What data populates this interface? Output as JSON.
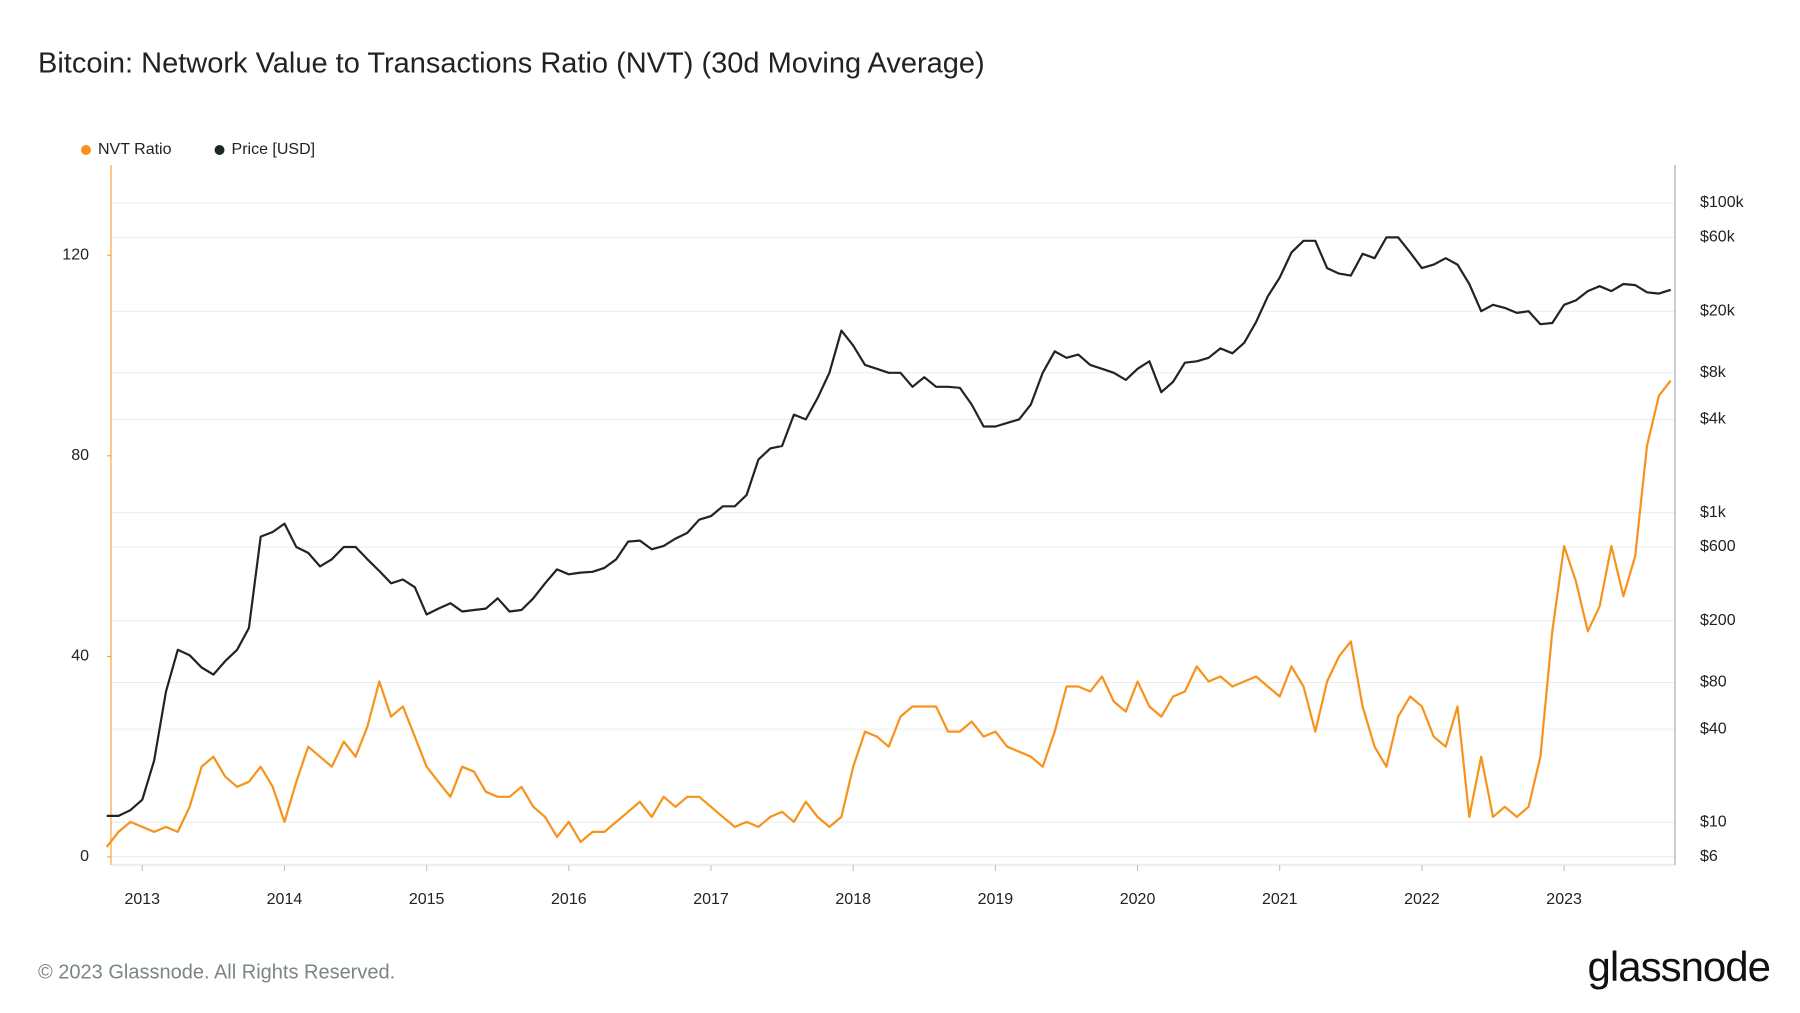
{
  "chart_data": {
    "type": "line",
    "title": "Bitcoin: Network Value to Transactions Ratio (NVT) (30d Moving Average)",
    "note": "© 2023 Glassnode. All Rights Reserved.",
    "logo": "glassnode",
    "x": [
      2012.75,
      2012.833,
      2012.917,
      2013,
      2013.083,
      2013.167,
      2013.25,
      2013.333,
      2013.417,
      2013.5,
      2013.583,
      2013.667,
      2013.75,
      2013.833,
      2013.917,
      2014,
      2014.083,
      2014.167,
      2014.25,
      2014.333,
      2014.417,
      2014.5,
      2014.583,
      2014.667,
      2014.75,
      2014.833,
      2014.917,
      2015,
      2015.083,
      2015.167,
      2015.25,
      2015.333,
      2015.417,
      2015.5,
      2015.583,
      2015.667,
      2015.75,
      2015.833,
      2015.917,
      2016,
      2016.083,
      2016.167,
      2016.25,
      2016.333,
      2016.417,
      2016.5,
      2016.583,
      2016.667,
      2016.75,
      2016.833,
      2016.917,
      2017,
      2017.083,
      2017.167,
      2017.25,
      2017.333,
      2017.417,
      2017.5,
      2017.583,
      2017.667,
      2017.75,
      2017.833,
      2017.917,
      2018,
      2018.083,
      2018.167,
      2018.25,
      2018.333,
      2018.417,
      2018.5,
      2018.583,
      2018.667,
      2018.75,
      2018.833,
      2018.917,
      2019,
      2019.083,
      2019.167,
      2019.25,
      2019.333,
      2019.417,
      2019.5,
      2019.583,
      2019.667,
      2019.75,
      2019.833,
      2019.917,
      2020,
      2020.083,
      2020.167,
      2020.25,
      2020.333,
      2020.417,
      2020.5,
      2020.583,
      2020.667,
      2020.75,
      2020.833,
      2020.917,
      2021,
      2021.083,
      2021.167,
      2021.25,
      2021.333,
      2021.417,
      2021.5,
      2021.583,
      2021.667,
      2021.75,
      2021.833,
      2021.917,
      2022,
      2022.083,
      2022.167,
      2022.25,
      2022.333,
      2022.417,
      2022.5,
      2022.583,
      2022.667,
      2022.75,
      2022.833,
      2022.917,
      2023,
      2023.083,
      2023.167,
      2023.25,
      2023.333,
      2023.417,
      2023.5,
      2023.583,
      2023.667,
      2023.75
    ],
    "series": [
      {
        "name": "NVT Ratio",
        "color": "#f7931a",
        "axis": "y",
        "values": [
          2,
          5,
          7,
          6,
          5,
          6,
          5,
          10,
          18,
          20,
          16,
          14,
          15,
          18,
          14,
          7,
          15,
          22,
          20,
          18,
          23,
          20,
          26,
          35,
          28,
          30,
          24,
          18,
          15,
          12,
          18,
          17,
          13,
          12,
          12,
          14,
          10,
          8,
          4,
          7,
          3,
          5,
          5,
          7,
          9,
          11,
          8,
          12,
          10,
          12,
          12,
          10,
          8,
          6,
          7,
          6,
          8,
          9,
          7,
          11,
          8,
          6,
          8,
          18,
          25,
          24,
          22,
          28,
          30,
          30,
          30,
          25,
          25,
          27,
          24,
          25,
          22,
          21,
          20,
          18,
          25,
          34,
          34,
          33,
          36,
          31,
          29,
          35,
          30,
          28,
          32,
          33,
          38,
          35,
          36,
          34,
          35,
          36,
          34,
          32,
          38,
          34,
          25,
          35,
          40,
          43,
          30,
          22,
          18,
          28,
          32,
          30,
          24,
          22,
          30,
          8,
          20,
          8,
          10,
          8,
          10,
          20,
          45,
          62,
          55,
          45,
          50,
          62,
          52,
          60,
          82,
          92,
          95
        ]
      },
      {
        "name": "Price [USD]",
        "color": "#1c2626",
        "axis": "y2",
        "values": [
          11,
          11,
          12,
          14,
          25,
          70,
          130,
          120,
          100,
          90,
          110,
          130,
          180,
          700,
          750,
          850,
          600,
          550,
          450,
          500,
          600,
          600,
          500,
          420,
          350,
          370,
          330,
          220,
          240,
          260,
          230,
          235,
          240,
          280,
          230,
          235,
          280,
          350,
          430,
          400,
          410,
          415,
          440,
          500,
          650,
          660,
          580,
          610,
          680,
          740,
          900,
          950,
          1100,
          1100,
          1300,
          2200,
          2600,
          2700,
          4300,
          4000,
          5500,
          8000,
          15000,
          12000,
          9000,
          8500,
          8000,
          8000,
          6500,
          7500,
          6500,
          6500,
          6400,
          5000,
          3600,
          3600,
          3800,
          4000,
          5000,
          8000,
          11000,
          10000,
          10500,
          9000,
          8500,
          8000,
          7200,
          8500,
          9500,
          6000,
          7000,
          9300,
          9500,
          10000,
          11500,
          10700,
          12500,
          17000,
          25000,
          33000,
          48000,
          57000,
          57000,
          38000,
          35000,
          34000,
          47000,
          44000,
          60000,
          60000,
          48000,
          38000,
          40000,
          44000,
          40000,
          30000,
          20000,
          22000,
          21000,
          19500,
          20000,
          16500,
          16800,
          22000,
          23500,
          27000,
          29000,
          27000,
          30000,
          29500,
          26500,
          26000,
          27500
        ]
      }
    ],
    "xlim": [
      2012.78,
      2023.78
    ],
    "xticks": [
      2013,
      2014,
      2015,
      2016,
      2017,
      2018,
      2019,
      2020,
      2021,
      2022,
      2023
    ],
    "ylim": [
      -1.6,
      138
    ],
    "yticks": [
      0,
      40,
      80,
      120
    ],
    "y2lim": [
      5.3,
      176000
    ],
    "y2log": true,
    "y2ticks": [
      {
        "value": 6,
        "label": "$6"
      },
      {
        "value": 10,
        "label": "$10"
      },
      {
        "value": 40,
        "label": "$40"
      },
      {
        "value": 80,
        "label": "$80"
      },
      {
        "value": 200,
        "label": "$200"
      },
      {
        "value": 600,
        "label": "$600"
      },
      {
        "value": 1000,
        "label": "$1k"
      },
      {
        "value": 4000,
        "label": "$4k"
      },
      {
        "value": 8000,
        "label": "$8k"
      },
      {
        "value": 20000,
        "label": "$20k"
      },
      {
        "value": 60000,
        "label": "$60k"
      },
      {
        "value": 100000,
        "label": "$100k"
      }
    ],
    "grid": true,
    "legend": "top-left"
  }
}
